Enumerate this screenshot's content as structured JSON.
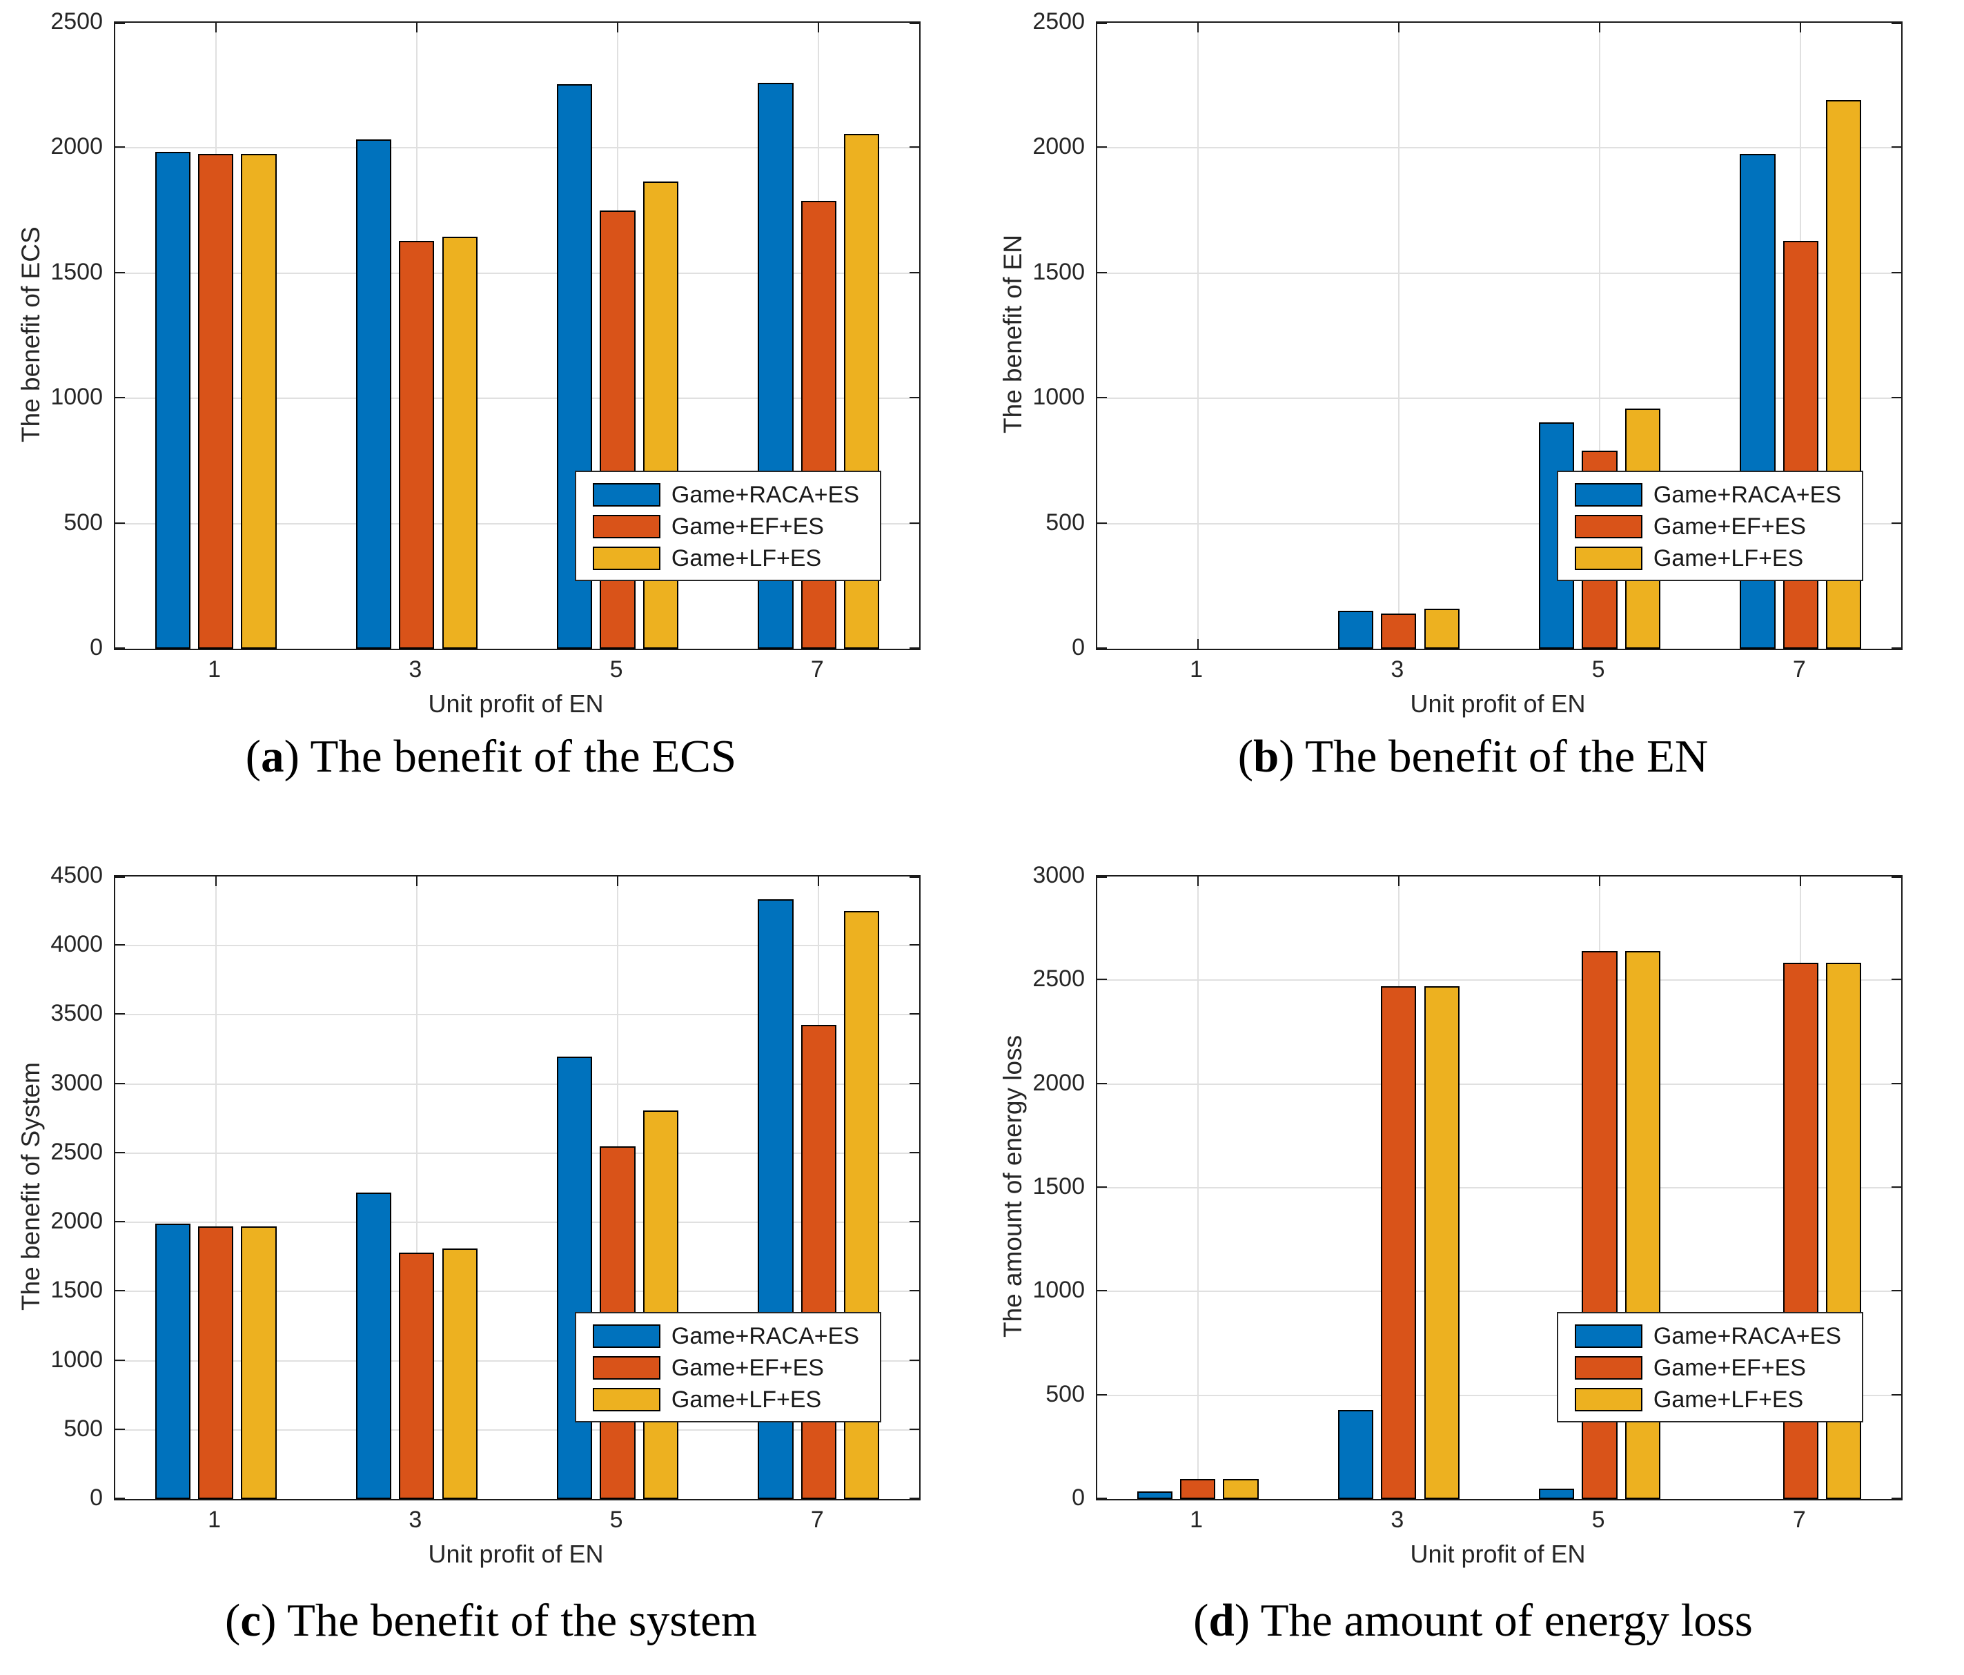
{
  "figure": {
    "background": "#ffffff",
    "axis_color": "#1a1a1a",
    "text_color": "#262626",
    "grid_color": "#e0e0e0",
    "bar_edge_color": "#000000",
    "paren_open": "(",
    "paren_close": ") ",
    "xlabel": "Unit profit of EN",
    "categories": [
      "1",
      "3",
      "5",
      "7"
    ],
    "series_names": [
      "Game+RACA+ES",
      "Game+EF+ES",
      "Game+LF+ES"
    ],
    "series_colors": [
      "#0072BD",
      "#D95319",
      "#EDB120"
    ]
  },
  "chart_data": [
    {
      "id": "a",
      "row": 1,
      "type": "bar",
      "caption_letter": "a",
      "caption_text": "The benefit of the ECS",
      "ylabel": "The benefit of ECS",
      "xlabel": "Unit profit of EN",
      "categories": [
        "1",
        "3",
        "5",
        "7"
      ],
      "ylim": [
        0,
        2500
      ],
      "ytick_step": 500,
      "grid": true,
      "legend_position": "right-middle",
      "series": [
        {
          "name": "Game+RACA+ES",
          "color": "#0072BD",
          "values": [
            1985,
            2035,
            2255,
            2260
          ]
        },
        {
          "name": "Game+EF+ES",
          "color": "#D95319",
          "values": [
            1975,
            1630,
            1750,
            1790
          ]
        },
        {
          "name": "Game+LF+ES",
          "color": "#EDB120",
          "values": [
            1975,
            1645,
            1865,
            2055
          ]
        }
      ]
    },
    {
      "id": "b",
      "row": 1,
      "type": "bar",
      "caption_letter": "b",
      "caption_text": "The benefit of the EN",
      "ylabel": "The benefit of EN",
      "xlabel": "Unit profit of EN",
      "categories": [
        "1",
        "3",
        "5",
        "7"
      ],
      "ylim": [
        0,
        2500
      ],
      "ytick_step": 500,
      "grid": true,
      "legend_position": "right-middle",
      "series": [
        {
          "name": "Game+RACA+ES",
          "color": "#0072BD",
          "values": [
            0,
            152,
            905,
            1975
          ]
        },
        {
          "name": "Game+EF+ES",
          "color": "#D95319",
          "values": [
            0,
            140,
            790,
            1630
          ]
        },
        {
          "name": "Game+LF+ES",
          "color": "#EDB120",
          "values": [
            0,
            160,
            960,
            2190
          ]
        }
      ]
    },
    {
      "id": "c",
      "row": 2,
      "type": "bar",
      "caption_letter": "c",
      "caption_text": "The benefit of the system",
      "ylabel": "The benefit of System",
      "xlabel": "Unit profit of EN",
      "categories": [
        "1",
        "3",
        "5",
        "7"
      ],
      "ylim": [
        0,
        4500
      ],
      "ytick_step": 500,
      "grid": true,
      "legend_position": "right-middle",
      "series": [
        {
          "name": "Game+RACA+ES",
          "color": "#0072BD",
          "values": [
            1990,
            2215,
            3200,
            4335
          ]
        },
        {
          "name": "Game+EF+ES",
          "color": "#D95319",
          "values": [
            1970,
            1780,
            2550,
            3425
          ]
        },
        {
          "name": "Game+LF+ES",
          "color": "#EDB120",
          "values": [
            1970,
            1810,
            2810,
            4250
          ]
        }
      ]
    },
    {
      "id": "d",
      "row": 2,
      "type": "bar",
      "caption_letter": "d",
      "caption_text": "The amount of energy loss",
      "ylabel": "The amount of energy loss",
      "xlabel": "Unit profit of EN",
      "categories": [
        "1",
        "3",
        "5",
        "7"
      ],
      "ylim": [
        0,
        3000
      ],
      "ytick_step": 500,
      "grid": true,
      "legend_position": "right-middle",
      "series": [
        {
          "name": "Game+RACA+ES",
          "color": "#0072BD",
          "values": [
            35,
            430,
            50,
            0
          ]
        },
        {
          "name": "Game+EF+ES",
          "color": "#D95319",
          "values": [
            95,
            2470,
            2640,
            2585
          ]
        },
        {
          "name": "Game+LF+ES",
          "color": "#EDB120",
          "values": [
            95,
            2470,
            2640,
            2585
          ]
        }
      ]
    }
  ]
}
